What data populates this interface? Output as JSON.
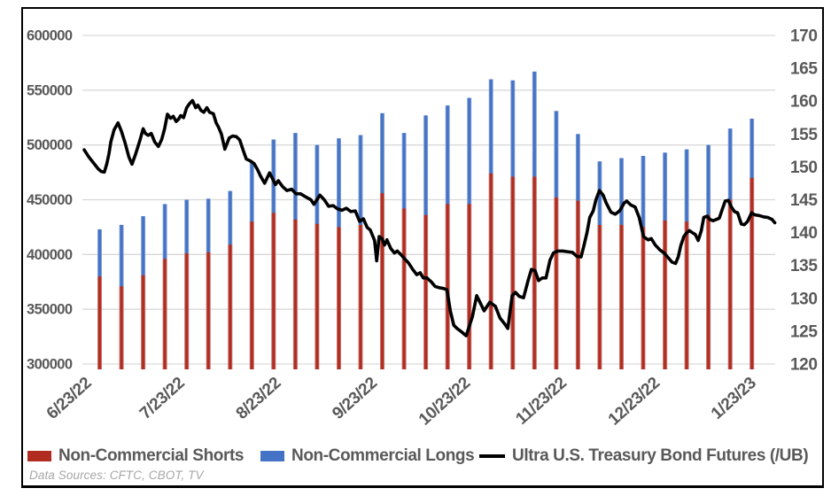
{
  "frame": {
    "background": "#FFFFFF",
    "border_color": "#000000"
  },
  "legend": {
    "shorts_label": "Non-Commercial Shorts",
    "longs_label": "Non-Commercial Longs",
    "line_label": "Ultra U.S. Treasury Bond Futures (/UB)"
  },
  "footnote": "Data Sources: CFTC, CBOT, TV",
  "colors": {
    "shorts": "#B02B20",
    "shorts_edge": "#D28E84",
    "longs": "#4472C4",
    "longs_edge": "#96B0DE",
    "price_line": "#000000",
    "grid": "#D9D9D9",
    "axis_text": "#595959",
    "footnote_text": "#A6A6A6"
  },
  "chart_data": {
    "type": "combo",
    "title": "",
    "left_axis": {
      "min": 300000,
      "max": 600000,
      "step": 50000,
      "tick_labels": [
        "600000",
        "550000",
        "500000",
        "450000",
        "400000",
        "350000",
        "300000"
      ]
    },
    "right_axis": {
      "min": 120,
      "max": 170,
      "step": 5,
      "tick_labels": [
        "170",
        "165",
        "160",
        "155",
        "150",
        "145",
        "140",
        "135",
        "130",
        "125",
        "120"
      ]
    },
    "x_axis": {
      "tick_labels": [
        "6/23/22",
        "7/23/22",
        "8/23/22",
        "9/23/22",
        "10/23/22",
        "11/23/22",
        "12/23/22",
        "1/23/23"
      ],
      "tick_positions_days": [
        0,
        30,
        61,
        92,
        122,
        153,
        183,
        214
      ],
      "span_days": 222.5,
      "grid": false
    },
    "bar_series": [
      {
        "name": "Non-Commercial Longs",
        "axis": "left",
        "color": "#4472C4",
        "first_day": 5,
        "interval_days": 7,
        "values": [
          423000,
          427000,
          435000,
          446000,
          450000,
          451000,
          458000,
          485000,
          505000,
          511000,
          500000,
          506000,
          509000,
          529000,
          511000,
          527000,
          536000,
          543000,
          560000,
          559000,
          567000,
          531000,
          510000,
          485000,
          488000,
          490000,
          493000,
          496000,
          500000,
          515000,
          524000
        ]
      },
      {
        "name": "Non-Commercial Shorts",
        "axis": "left",
        "color": "#B02B20",
        "first_day": 5,
        "interval_days": 7,
        "values": [
          380000,
          371000,
          381000,
          396000,
          401000,
          402000,
          409000,
          430000,
          438000,
          432000,
          428000,
          425000,
          427000,
          456000,
          442000,
          436000,
          446000,
          446000,
          474000,
          471000,
          471000,
          452000,
          449000,
          427000,
          427000,
          425000,
          431000,
          430000,
          436000,
          450000,
          470000
        ]
      }
    ],
    "line_series": {
      "name": "Ultra U.S. Treasury Bond Futures (/UB)",
      "axis": "right",
      "color": "#000000",
      "points": [
        [
          0,
          152.6
        ],
        [
          1.5,
          151.5
        ],
        [
          3,
          150.6
        ],
        [
          4.5,
          149.7
        ],
        [
          5.5,
          149.3
        ],
        [
          6.5,
          149.2
        ],
        [
          7.3,
          150.5
        ],
        [
          8,
          152
        ],
        [
          8.6,
          153.8
        ],
        [
          9.6,
          155.6
        ],
        [
          10.9,
          156.7
        ],
        [
          12,
          155.4
        ],
        [
          13.2,
          153.6
        ],
        [
          14.4,
          151.5
        ],
        [
          15.4,
          150.4
        ],
        [
          16.6,
          152
        ],
        [
          17.8,
          153.8
        ],
        [
          19,
          155.8
        ],
        [
          19.7,
          155.1
        ],
        [
          20.6,
          154.8
        ],
        [
          21.6,
          155.1
        ],
        [
          22.7,
          153.8
        ],
        [
          23.9,
          153.1
        ],
        [
          25,
          154.2
        ],
        [
          25.9,
          155.8
        ],
        [
          26.8,
          158
        ],
        [
          27.8,
          157.4
        ],
        [
          28.7,
          157.7
        ],
        [
          29.6,
          156.9
        ],
        [
          30.3,
          157.2
        ],
        [
          31.1,
          157.8
        ],
        [
          32,
          157.5
        ],
        [
          33,
          159
        ],
        [
          33.9,
          159.6
        ],
        [
          34.9,
          160.1
        ],
        [
          35.9,
          159
        ],
        [
          36.6,
          159.4
        ],
        [
          37.6,
          158.6
        ],
        [
          38.5,
          158.3
        ],
        [
          39.5,
          159
        ],
        [
          40.4,
          158.3
        ],
        [
          41.6,
          158.1
        ],
        [
          42.5,
          156.7
        ],
        [
          43.3,
          156
        ],
        [
          44.2,
          155
        ],
        [
          45.3,
          152.7
        ],
        [
          46.7,
          154.4
        ],
        [
          47.8,
          154.7
        ],
        [
          49,
          154.6
        ],
        [
          50.1,
          154.1
        ],
        [
          51.3,
          152.4
        ],
        [
          52.2,
          151.2
        ],
        [
          53.5,
          150.9
        ],
        [
          54.7,
          150.5
        ],
        [
          55.8,
          149.6
        ],
        [
          56.8,
          148.6
        ],
        [
          58.1,
          147.5
        ],
        [
          59.7,
          149.1
        ],
        [
          61.6,
          147.3
        ],
        [
          62.5,
          147.9
        ],
        [
          63.9,
          147
        ],
        [
          65.3,
          146.4
        ],
        [
          66.8,
          146.6
        ],
        [
          68.2,
          145.9
        ],
        [
          69.7,
          145.9
        ],
        [
          71.1,
          145.5
        ],
        [
          73,
          145
        ],
        [
          74,
          144.3
        ],
        [
          75.9,
          145.7
        ],
        [
          77.3,
          145
        ],
        [
          78.7,
          144
        ],
        [
          80.2,
          144.1
        ],
        [
          81.6,
          143.6
        ],
        [
          83,
          143.4
        ],
        [
          84.4,
          143.7
        ],
        [
          85.9,
          143.2
        ],
        [
          87.3,
          143.3
        ],
        [
          88.7,
          141.7
        ],
        [
          89.9,
          142.1
        ],
        [
          91.1,
          140.8
        ],
        [
          92.1,
          140.4
        ],
        [
          93.5,
          138.8
        ],
        [
          94.2,
          135.7
        ],
        [
          95,
          139.4
        ],
        [
          95.9,
          139.1
        ],
        [
          96.7,
          138.1
        ],
        [
          97.5,
          138.9
        ],
        [
          98.7,
          137.6
        ],
        [
          99.9,
          136.9
        ],
        [
          100.8,
          137.2
        ],
        [
          102.1,
          136.6
        ],
        [
          103,
          136.1
        ],
        [
          104.4,
          135.4
        ],
        [
          105.8,
          134.4
        ],
        [
          107.1,
          133.6
        ],
        [
          108.2,
          133.9
        ],
        [
          109.2,
          133.1
        ],
        [
          110.4,
          133.1
        ],
        [
          111.8,
          132.5
        ],
        [
          113,
          131.8
        ],
        [
          114.4,
          131.6
        ],
        [
          115.7,
          131.5
        ],
        [
          116.8,
          131.3
        ],
        [
          117.9,
          128.1
        ],
        [
          119,
          125.9
        ],
        [
          120.1,
          125.4
        ],
        [
          121.5,
          124.9
        ],
        [
          123,
          124.3
        ],
        [
          125,
          127.2
        ],
        [
          126.4,
          130.4
        ],
        [
          128.8,
          128.1
        ],
        [
          130.6,
          129.4
        ],
        [
          132.4,
          128.8
        ],
        [
          133.9,
          127
        ],
        [
          135.4,
          126.1
        ],
        [
          136.4,
          125.4
        ],
        [
          137.8,
          130.4
        ],
        [
          138.9,
          130.9
        ],
        [
          140.1,
          130.3
        ],
        [
          141.5,
          130.1
        ],
        [
          143,
          132.8
        ],
        [
          144,
          134.4
        ],
        [
          145.2,
          134.2
        ],
        [
          146.3,
          132.7
        ],
        [
          147.5,
          133.1
        ],
        [
          148.7,
          133.1
        ],
        [
          150,
          135.8
        ],
        [
          151.1,
          136.9
        ],
        [
          152.5,
          137.2
        ],
        [
          154.1,
          137.2
        ],
        [
          155.5,
          137.1
        ],
        [
          157.2,
          137
        ],
        [
          158.6,
          136.4
        ],
        [
          160,
          136.3
        ],
        [
          160.9,
          138
        ],
        [
          161.9,
          140
        ],
        [
          162.8,
          142.3
        ],
        [
          163.9,
          143.3
        ],
        [
          164.8,
          145
        ],
        [
          165.9,
          146.4
        ],
        [
          167.1,
          145.7
        ],
        [
          168.1,
          144.5
        ],
        [
          169.6,
          143.1
        ],
        [
          171,
          142.8
        ],
        [
          172.4,
          143.3
        ],
        [
          173.9,
          144.5
        ],
        [
          174.7,
          144.8
        ],
        [
          176,
          144.2
        ],
        [
          177.4,
          143.9
        ],
        [
          178.7,
          142.3
        ],
        [
          180.1,
          139.4
        ],
        [
          181.6,
          138.9
        ],
        [
          182.6,
          139.1
        ],
        [
          183.9,
          138.1
        ],
        [
          185.3,
          137.4
        ],
        [
          186.7,
          136.9
        ],
        [
          188,
          136.2
        ],
        [
          189.3,
          135.5
        ],
        [
          190.4,
          135.3
        ],
        [
          191.3,
          136.3
        ],
        [
          192.1,
          138
        ],
        [
          193.1,
          139.4
        ],
        [
          193.9,
          139.9
        ],
        [
          194.9,
          140.3
        ],
        [
          195.8,
          140
        ],
        [
          196.8,
          139.7
        ],
        [
          197.7,
          138.8
        ],
        [
          198.7,
          140.3
        ],
        [
          199.5,
          142.3
        ],
        [
          200.6,
          142.5
        ],
        [
          201.5,
          142
        ],
        [
          202.5,
          141.8
        ],
        [
          203.5,
          142
        ],
        [
          204.5,
          142.2
        ],
        [
          205.5,
          143.6
        ],
        [
          206.4,
          144.8
        ],
        [
          207.4,
          144.9
        ],
        [
          208.4,
          143.9
        ],
        [
          209.4,
          143.2
        ],
        [
          210.4,
          143
        ],
        [
          211.6,
          141.3
        ],
        [
          212.6,
          141.2
        ],
        [
          213.6,
          141.7
        ],
        [
          214.9,
          143
        ],
        [
          215.9,
          142.7
        ],
        [
          217.3,
          142.6
        ],
        [
          218.7,
          142.4
        ],
        [
          220.1,
          142.3
        ],
        [
          221.5,
          142
        ],
        [
          222.4,
          141.5
        ]
      ]
    }
  }
}
